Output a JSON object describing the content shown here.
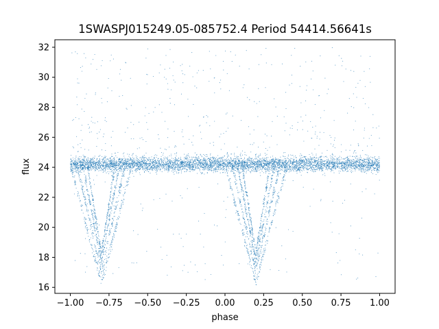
{
  "chart_data": {
    "type": "scatter",
    "title": "1SWASPJ015249.05-085752.4 Period 54414.56641s",
    "xlabel": "phase",
    "ylabel": "flux",
    "xlim": [
      -1.1,
      1.1
    ],
    "ylim": [
      15.6,
      32.5
    ],
    "xticks": [
      -1.0,
      -0.75,
      -0.5,
      -0.25,
      0.0,
      0.25,
      0.5,
      0.75,
      1.0
    ],
    "xtick_labels": [
      "−1.00",
      "−0.75",
      "−0.50",
      "−0.25",
      "0.00",
      "0.25",
      "0.50",
      "0.75",
      "1.00"
    ],
    "yticks": [
      16,
      18,
      20,
      22,
      24,
      26,
      28,
      30,
      32
    ],
    "ytick_labels": [
      "16",
      "18",
      "20",
      "22",
      "24",
      "26",
      "28",
      "30",
      "32"
    ],
    "grid": false,
    "marker_color": "#1f77b4",
    "phase_range": [
      -1.0,
      1.0
    ],
    "baseline_flux": 24.2,
    "baseline_scatter": 0.35,
    "eclipse_dip_centers_phase": [
      -0.8,
      0.2
    ],
    "eclipse_min_flux": 16.3,
    "eclipse_half_width_phase": 0.2,
    "outlier_flux_range": [
      16.5,
      32.0
    ]
  }
}
